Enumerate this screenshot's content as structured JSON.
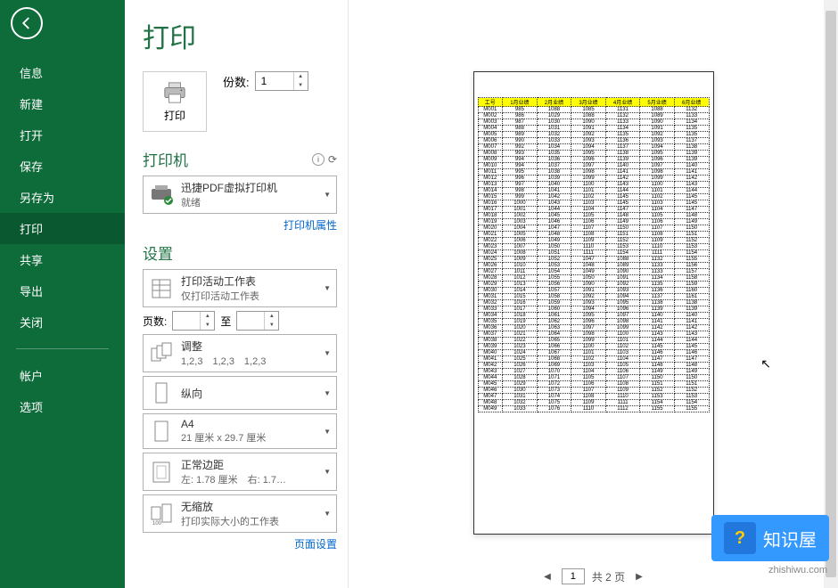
{
  "sidebar": {
    "items": [
      {
        "label": "信息"
      },
      {
        "label": "新建"
      },
      {
        "label": "打开"
      },
      {
        "label": "保存"
      },
      {
        "label": "另存为"
      },
      {
        "label": "打印"
      },
      {
        "label": "共享"
      },
      {
        "label": "导出"
      },
      {
        "label": "关闭"
      }
    ],
    "bottom": [
      {
        "label": "帐户"
      },
      {
        "label": "选项"
      }
    ],
    "active_index": 5,
    "bg_color": "#0e6b3a"
  },
  "page": {
    "title": "打印",
    "print_button": "打印",
    "copies_label": "份数:",
    "copies_value": "1"
  },
  "printer": {
    "section_title": "打印机",
    "name": "迅捷PDF虚拟打印机",
    "status": "就绪",
    "properties_link": "打印机属性"
  },
  "settings": {
    "section_title": "设置",
    "pages_label": "页数:",
    "pages_to": "至",
    "page_setup_link": "页面设置",
    "opts": [
      {
        "title": "打印活动工作表",
        "sub": "仅打印活动工作表",
        "icon": "sheet"
      },
      {
        "title": "调整",
        "sub": "1,2,3　1,2,3　1,2,3",
        "icon": "collate"
      },
      {
        "title": "纵向",
        "sub": "",
        "icon": "portrait"
      },
      {
        "title": "A4",
        "sub": "21 厘米 x 29.7 厘米",
        "icon": "page"
      },
      {
        "title": "正常边距",
        "sub": "左: 1.78 厘米　右: 1.7…",
        "icon": "margins"
      },
      {
        "title": "无缩放",
        "sub": "打印实际大小的工作表",
        "icon": "scale"
      }
    ]
  },
  "preview": {
    "current_page": "1",
    "total_label": "共 2 页",
    "table": {
      "headers": [
        "工号",
        "1月业绩",
        "2月业绩",
        "3月业绩",
        "4月业绩",
        "5月业绩",
        "6月业绩"
      ],
      "header_bg": "#ffff00",
      "rows": [
        [
          "M001",
          "985",
          "1088",
          "1085",
          "1131",
          "1088",
          "1132"
        ],
        [
          "M002",
          "986",
          "1029",
          "1088",
          "1132",
          "1089",
          "1133"
        ],
        [
          "M003",
          "987",
          "1030",
          "1090",
          "1133",
          "1090",
          "1134"
        ],
        [
          "M004",
          "988",
          "1031",
          "1091",
          "1134",
          "1091",
          "1135"
        ],
        [
          "M005",
          "989",
          "1032",
          "1092",
          "1135",
          "1092",
          "1135"
        ],
        [
          "M006",
          "990",
          "1033",
          "1093",
          "1136",
          "1093",
          "1137"
        ],
        [
          "M007",
          "992",
          "1034",
          "1094",
          "1137",
          "1094",
          "1138"
        ],
        [
          "M008",
          "993",
          "1035",
          "1095",
          "1138",
          "1095",
          "1139"
        ],
        [
          "M009",
          "994",
          "1036",
          "1096",
          "1139",
          "1096",
          "1139"
        ],
        [
          "M010",
          "994",
          "1037",
          "1097",
          "1140",
          "1097",
          "1140"
        ],
        [
          "M011",
          "995",
          "1038",
          "1098",
          "1141",
          "1098",
          "1141"
        ],
        [
          "M012",
          "996",
          "1039",
          "1099",
          "1142",
          "1099",
          "1142"
        ],
        [
          "M013",
          "997",
          "1040",
          "1100",
          "1143",
          "1100",
          "1143"
        ],
        [
          "M014",
          "998",
          "1041",
          "1101",
          "1144",
          "1101",
          "1144"
        ],
        [
          "M015",
          "999",
          "1042",
          "1102",
          "1145",
          "1102",
          "1145"
        ],
        [
          "M016",
          "1000",
          "1043",
          "1103",
          "1145",
          "1103",
          "1145"
        ],
        [
          "M017",
          "1001",
          "1044",
          "1104",
          "1147",
          "1104",
          "1147"
        ],
        [
          "M018",
          "1002",
          "1045",
          "1105",
          "1148",
          "1105",
          "1148"
        ],
        [
          "M019",
          "1003",
          "1046",
          "1106",
          "1149",
          "1106",
          "1149"
        ],
        [
          "M020",
          "1004",
          "1047",
          "1107",
          "1150",
          "1107",
          "1150"
        ],
        [
          "M021",
          "1005",
          "1048",
          "1108",
          "1151",
          "1108",
          "1151"
        ],
        [
          "M022",
          "1006",
          "1049",
          "1109",
          "1152",
          "1109",
          "1152"
        ],
        [
          "M023",
          "1007",
          "1050",
          "1110",
          "1153",
          "1110",
          "1153"
        ],
        [
          "M024",
          "1008",
          "1051",
          "1111",
          "1154",
          "1111",
          "1154"
        ],
        [
          "M025",
          "1009",
          "1052",
          "1047",
          "1088",
          "1132",
          "1155"
        ],
        [
          "M026",
          "1010",
          "1053",
          "1048",
          "1089",
          "1133",
          "1156"
        ],
        [
          "M027",
          "1011",
          "1054",
          "1049",
          "1090",
          "1133",
          "1157"
        ],
        [
          "M028",
          "1012",
          "1055",
          "1050",
          "1091",
          "1134",
          "1158"
        ],
        [
          "M029",
          "1013",
          "1056",
          "1090",
          "1092",
          "1135",
          "1159"
        ],
        [
          "M030",
          "1014",
          "1057",
          "1091",
          "1093",
          "1136",
          "1160"
        ],
        [
          "M031",
          "1015",
          "1058",
          "1092",
          "1094",
          "1137",
          "1161"
        ],
        [
          "M032",
          "1016",
          "1059",
          "1093",
          "1095",
          "1138",
          "1138"
        ],
        [
          "M033",
          "1017",
          "1060",
          "1094",
          "1096",
          "1139",
          "1139"
        ],
        [
          "M034",
          "1018",
          "1061",
          "1095",
          "1097",
          "1140",
          "1140"
        ],
        [
          "M035",
          "1019",
          "1062",
          "1096",
          "1098",
          "1141",
          "1141"
        ],
        [
          "M036",
          "1020",
          "1063",
          "1097",
          "1099",
          "1142",
          "1142"
        ],
        [
          "M037",
          "1021",
          "1064",
          "1098",
          "1100",
          "1143",
          "1143"
        ],
        [
          "M038",
          "1022",
          "1065",
          "1099",
          "1101",
          "1144",
          "1144"
        ],
        [
          "M039",
          "1023",
          "1066",
          "1100",
          "1102",
          "1145",
          "1145"
        ],
        [
          "M040",
          "1024",
          "1067",
          "1101",
          "1103",
          "1146",
          "1146"
        ],
        [
          "M041",
          "1025",
          "1068",
          "1102",
          "1104",
          "1147",
          "1147"
        ],
        [
          "M042",
          "1026",
          "1069",
          "1103",
          "1105",
          "1148",
          "1148"
        ],
        [
          "M043",
          "1027",
          "1070",
          "1104",
          "1106",
          "1149",
          "1149"
        ],
        [
          "M044",
          "1028",
          "1071",
          "1105",
          "1107",
          "1150",
          "1150"
        ],
        [
          "M045",
          "1029",
          "1072",
          "1106",
          "1108",
          "1151",
          "1151"
        ],
        [
          "M046",
          "1030",
          "1073",
          "1107",
          "1109",
          "1152",
          "1152"
        ],
        [
          "M047",
          "1031",
          "1074",
          "1108",
          "1110",
          "1153",
          "1153"
        ],
        [
          "M048",
          "1032",
          "1075",
          "1109",
          "1111",
          "1154",
          "1154"
        ],
        [
          "M049",
          "1033",
          "1076",
          "1110",
          "1112",
          "1155",
          "1155"
        ]
      ]
    }
  },
  "watermark": {
    "text": "知识屋",
    "url": "zhishiwu.com",
    "icon": "?"
  }
}
